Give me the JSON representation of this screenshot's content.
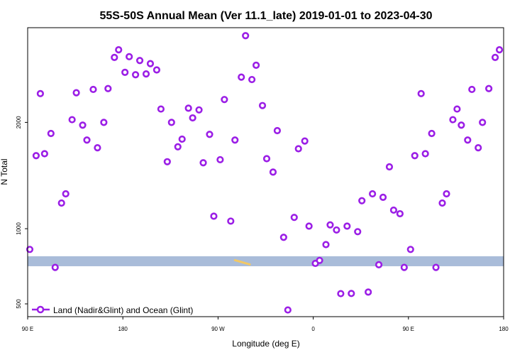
{
  "colors": {
    "marker": "#9B1EE6",
    "band": "#A9BCD9",
    "land_streak": "#F2C865",
    "axis": "#000000"
  },
  "chart_data": {
    "type": "scatter",
    "title": "55S-50S Annual Mean (Ver 11.1_late)   2019-01-01 to 2023-04-30",
    "xlabel": "Longitude (deg E)",
    "ylabel": "N Total",
    "y_scale": "sqrt",
    "xlim": [
      90,
      315
    ],
    "ylim": [
      432,
      3180
    ],
    "x_ticks": [
      {
        "value": 90,
        "label": "90 E"
      },
      {
        "value": 135,
        "label": "180"
      },
      {
        "value": 180,
        "label": "90 W"
      },
      {
        "value": 225,
        "label": "0"
      },
      {
        "value": 270,
        "label": "90 E"
      },
      {
        "value": 315,
        "label": "180"
      }
    ],
    "y_ticks": [
      {
        "value": 500,
        "label": "500"
      },
      {
        "value": 1000,
        "label": "1000"
      },
      {
        "value": 2000,
        "label": "2000"
      }
    ],
    "legend": {
      "entry": "Land (Nadir&Glint) and Ocean (Glint)",
      "position": "bottom-left"
    },
    "band": {
      "y_low": 729,
      "y_high": 797
    },
    "land_streak": {
      "x_start": 188,
      "x_end": 195,
      "y": 760
    },
    "series": [
      {
        "name": "Land (Nadir&Glint) and Ocean (Glint)",
        "points": [
          [
            91,
            845
          ],
          [
            94,
            1650
          ],
          [
            96,
            2330
          ],
          [
            98,
            1670
          ],
          [
            101,
            1880
          ],
          [
            103,
            721
          ],
          [
            106,
            1210
          ],
          [
            108,
            1290
          ],
          [
            111,
            2030
          ],
          [
            113,
            2340
          ],
          [
            116,
            1970
          ],
          [
            118,
            1810
          ],
          [
            121,
            2380
          ],
          [
            123,
            1730
          ],
          [
            126,
            2000
          ],
          [
            128,
            2390
          ],
          [
            131,
            2780
          ],
          [
            133,
            2880
          ],
          [
            136,
            2590
          ],
          [
            138,
            2790
          ],
          [
            141,
            2560
          ],
          [
            143,
            2740
          ],
          [
            146,
            2570
          ],
          [
            148,
            2700
          ],
          [
            151,
            2620
          ],
          [
            153,
            2150
          ],
          [
            156,
            1590
          ],
          [
            158,
            2000
          ],
          [
            161,
            1740
          ],
          [
            163,
            1820
          ],
          [
            166,
            2160
          ],
          [
            168,
            2050
          ],
          [
            171,
            2140
          ],
          [
            173,
            1580
          ],
          [
            176,
            1870
          ],
          [
            178,
            1100
          ],
          [
            181,
            1610
          ],
          [
            183,
            2260
          ],
          [
            186,
            1060
          ],
          [
            188,
            1810
          ],
          [
            191,
            2530
          ],
          [
            193,
            3070
          ],
          [
            196,
            2500
          ],
          [
            198,
            2680
          ],
          [
            201,
            2190
          ],
          [
            203,
            1620
          ],
          [
            206,
            1490
          ],
          [
            208,
            1910
          ],
          [
            211,
            934
          ],
          [
            213,
            467
          ],
          [
            216,
            1090
          ],
          [
            218,
            1720
          ],
          [
            221,
            1800
          ],
          [
            223,
            1020
          ],
          [
            226,
            748
          ],
          [
            228,
            768
          ],
          [
            231,
            880
          ],
          [
            233,
            1030
          ],
          [
            236,
            990
          ],
          [
            238,
            558
          ],
          [
            241,
            1020
          ],
          [
            243,
            559
          ],
          [
            246,
            977
          ],
          [
            248,
            1230
          ],
          [
            251,
            567
          ],
          [
            253,
            1290
          ],
          [
            256,
            739
          ],
          [
            258,
            1260
          ],
          [
            261,
            1540
          ],
          [
            263,
            1150
          ],
          [
            266,
            1120
          ],
          [
            268,
            721
          ],
          [
            271,
            845
          ],
          [
            273,
            1650
          ],
          [
            276,
            2330
          ],
          [
            278,
            1670
          ],
          [
            281,
            1880
          ],
          [
            283,
            721
          ],
          [
            286,
            1210
          ],
          [
            288,
            1290
          ],
          [
            291,
            2030
          ],
          [
            293,
            2150
          ],
          [
            295,
            1970
          ],
          [
            298,
            1810
          ],
          [
            300,
            2380
          ],
          [
            303,
            1730
          ],
          [
            305,
            2000
          ],
          [
            308,
            2390
          ],
          [
            311,
            2780
          ],
          [
            313,
            2880
          ]
        ]
      }
    ]
  }
}
